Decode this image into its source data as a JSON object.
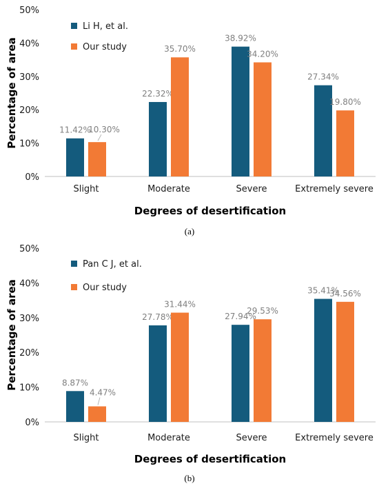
{
  "colors": {
    "series1": "#145b7d",
    "series2": "#f27a35",
    "axis": "#bfbfbf",
    "label": "#7f7f7f"
  },
  "chart_data": [
    {
      "type": "bar",
      "caption": "(a)",
      "categories": [
        "Slight",
        "Moderate",
        "Severe",
        "Extremely severe"
      ],
      "series": [
        {
          "name": "Li H, et al.",
          "values": [
            11.42,
            22.32,
            38.92,
            27.34
          ],
          "labels": [
            "11.42%",
            "22.32%",
            "38.92%",
            "27.34%"
          ]
        },
        {
          "name": "Our study",
          "values": [
            10.3,
            35.7,
            34.2,
            19.8
          ],
          "labels": [
            "10.30%",
            "35.70%",
            "34.20%",
            "19.80%"
          ]
        }
      ],
      "yticks": [
        "0%",
        "10%",
        "20%",
        "30%",
        "40%",
        "50%"
      ],
      "ylim": [
        0,
        50
      ],
      "xlabel": "Degrees of desertification",
      "ylabel": "Percentage of area",
      "legend": "top-left",
      "grid": false
    },
    {
      "type": "bar",
      "caption": "(b)",
      "categories": [
        "Slight",
        "Moderate",
        "Severe",
        "Extremely severe"
      ],
      "series": [
        {
          "name": "Pan C J, et al.",
          "values": [
            8.87,
            27.78,
            27.94,
            35.41
          ],
          "labels": [
            "8.87%",
            "27.78%",
            "27.94%",
            "35.41%"
          ]
        },
        {
          "name": "Our study",
          "values": [
            4.47,
            31.44,
            29.53,
            34.56
          ],
          "labels": [
            "4.47%",
            "31.44%",
            "29.53%",
            "34.56%"
          ]
        }
      ],
      "yticks": [
        "0%",
        "10%",
        "20%",
        "30%",
        "40%",
        "50%"
      ],
      "ylim": [
        0,
        50
      ],
      "xlabel": "Degrees of desertification",
      "ylabel": "Percentage of area",
      "legend": "top-left",
      "grid": false
    }
  ]
}
